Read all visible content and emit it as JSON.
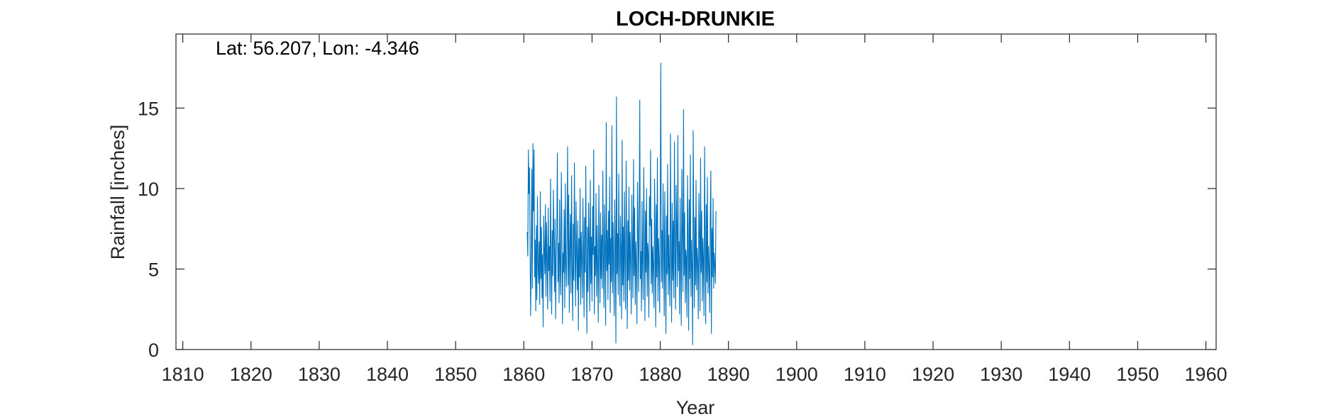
{
  "chart_data": {
    "type": "line",
    "title": "LOCH-DRUNKIE",
    "annotation": "Lat: 56.207, Lon: -4.346",
    "xlabel": "Year",
    "ylabel": "Rainfall [inches]",
    "xlim": [
      1809,
      1961.5
    ],
    "ylim": [
      0,
      19.6
    ],
    "xticks": [
      1810,
      1820,
      1830,
      1840,
      1850,
      1860,
      1870,
      1880,
      1890,
      1900,
      1910,
      1920,
      1930,
      1940,
      1950,
      1960
    ],
    "yticks": [
      0,
      5,
      10,
      15
    ],
    "grid": false,
    "series": [
      {
        "color": "#0072BD",
        "x_start": 1860.5,
        "x_step_months": 1,
        "values": [
          7.3,
          5.8,
          12.4,
          9.7,
          11.3,
          6.2,
          2.1,
          5.5,
          11.2,
          3.8,
          12.8,
          8.6,
          12.4,
          4.5,
          6.8,
          2.4,
          7.7,
          3.1,
          9.5,
          5.2,
          4.1,
          6.7,
          2.8,
          9.8,
          4.4,
          7.6,
          3.2,
          5.9,
          1.4,
          8.3,
          6.1,
          4.7,
          9.0,
          3.3,
          7.9,
          5.6,
          2.5,
          8.8,
          4.9,
          6.4,
          3.0,
          10.6,
          5.3,
          2.2,
          7.4,
          4.6,
          9.9,
          6.8,
          3.6,
          8.1,
          1.9,
          5.7,
          7.2,
          12.2,
          4.2,
          6.6,
          2.9,
          9.3,
          5.0,
          3.4,
          11.0,
          7.5,
          1.6,
          6.0,
          4.8,
          8.7,
          2.6,
          10.3,
          5.4,
          3.9,
          7.0,
          12.6,
          4.0,
          9.6,
          2.3,
          6.5,
          8.4,
          3.5,
          10.8,
          5.1,
          1.8,
          7.8,
          4.3,
          11.6,
          6.3,
          2.7,
          9.2,
          5.8,
          3.7,
          8.0,
          1.2,
          6.9,
          4.5,
          10.0,
          2.8,
          7.3,
          5.6,
          3.2,
          9.4,
          6.1,
          2.0,
          8.2,
          4.8,
          11.4,
          5.5,
          1.0,
          7.6,
          3.6,
          9.1,
          6.7,
          2.4,
          10.5,
          4.1,
          7.0,
          3.0,
          8.9,
          5.9,
          12.4,
          2.2,
          6.4,
          4.6,
          9.7,
          3.3,
          7.7,
          5.2,
          1.7,
          10.2,
          6.6,
          2.9,
          8.5,
          4.4,
          7.1,
          3.8,
          11.1,
          5.7,
          2.6,
          9.0,
          6.2,
          1.5,
          14.1,
          4.9,
          7.4,
          3.1,
          8.6,
          5.3,
          10.7,
          2.3,
          6.9,
          4.2,
          13.9,
          3.5,
          7.9,
          5.0,
          2.1,
          9.3,
          6.5,
          0.4,
          15.7,
          4.7,
          7.2,
          3.4,
          10.9,
          5.8,
          2.7,
          8.3,
          6.0,
          1.9,
          13.0,
          4.0,
          7.6,
          3.0,
          9.8,
          5.4,
          2.5,
          11.7,
          6.8,
          1.3,
          8.0,
          4.3,
          10.1,
          3.7,
          7.3,
          5.6,
          2.2,
          9.6,
          6.3,
          3.2,
          11.8,
          4.6,
          8.8,
          2.8,
          6.7,
          5.1,
          1.6,
          10.4,
          7.5,
          3.6,
          8.4,
          15.5,
          4.4,
          6.1,
          2.4,
          9.2,
          5.3,
          3.1,
          11.3,
          7.0,
          1.8,
          8.6,
          4.8,
          10.0,
          3.3,
          6.6,
          5.9,
          2.0,
          9.5,
          7.7,
          12.4,
          4.1,
          8.1,
          3.5,
          6.4,
          5.2,
          2.6,
          10.6,
          7.2,
          1.4,
          9.0,
          4.5,
          11.9,
          3.0,
          6.9,
          5.5,
          2.3,
          8.7,
          17.8,
          4.2,
          7.4,
          3.8,
          10.3,
          6.0,
          2.1,
          9.8,
          5.6,
          1.0,
          8.3,
          4.7,
          11.5,
          3.4,
          7.1,
          5.0,
          2.7,
          13.4,
          6.5,
          1.7,
          9.1,
          4.3,
          8.0,
          3.2,
          12.9,
          5.8,
          2.5,
          10.2,
          7.6,
          3.9,
          13.3,
          4.9,
          6.7,
          2.2,
          9.4,
          5.3,
          1.5,
          11.2,
          7.3,
          3.6,
          14.9,
          4.6,
          8.5,
          2.9,
          6.2,
          5.7,
          2.0,
          10.8,
          7.0,
          1.2,
          9.3,
          4.4,
          12.1,
          3.3,
          6.8,
          5.1,
          0.3,
          13.6,
          7.8,
          2.6,
          8.2,
          4.0,
          10.5,
          3.7,
          6.3,
          5.4,
          1.9,
          9.7,
          7.4,
          2.4,
          11.9,
          4.8,
          8.6,
          3.0,
          6.9,
          5.6,
          2.1,
          12.6,
          7.1,
          1.6,
          9.0,
          4.2,
          10.7,
          3.5,
          6.4,
          5.0,
          2.3,
          8.3,
          11.1,
          1.0,
          7.5,
          4.5,
          9.4,
          3.8,
          6.0,
          5.2,
          4.1,
          8.6
        ]
      }
    ]
  }
}
